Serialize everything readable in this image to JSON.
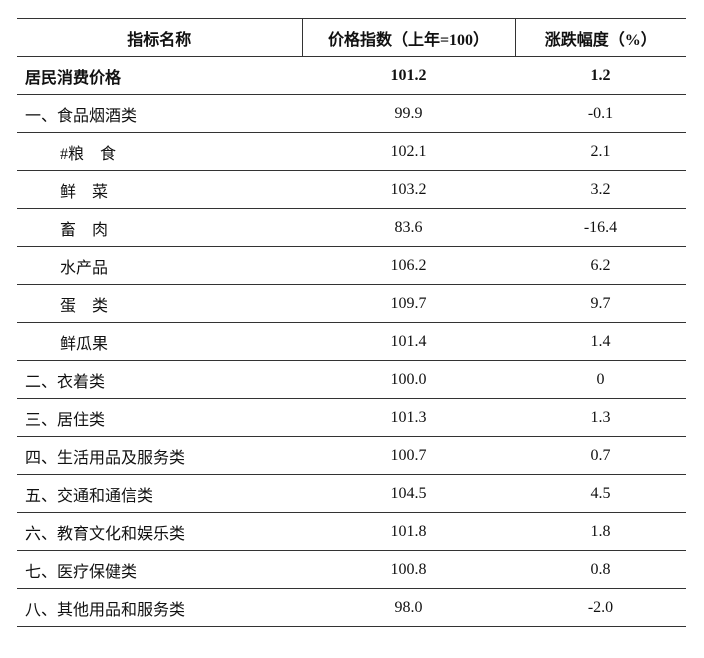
{
  "table": {
    "header": [
      "指标名称",
      "价格指数（上年=100）",
      "涨跌幅度（%）"
    ],
    "rows": [
      [
        "居民消费价格",
        "101.2",
        "1.2"
      ],
      [
        "一、食品烟酒类",
        "99.9",
        "-0.1"
      ],
      [
        "#粮　食",
        "102.1",
        "2.1"
      ],
      [
        "鲜　菜",
        "103.2",
        "3.2"
      ],
      [
        "畜　肉",
        "83.6",
        "-16.4"
      ],
      [
        "水产品",
        "106.2",
        "6.2"
      ],
      [
        "蛋　类",
        "109.7",
        "9.7"
      ],
      [
        "鲜瓜果",
        "101.4",
        "1.4"
      ],
      [
        "二、衣着类",
        "100.0",
        "0"
      ],
      [
        "三、居住类",
        "101.3",
        "1.3"
      ],
      [
        "四、生活用品及服务类",
        "100.7",
        "0.7"
      ],
      [
        "五、交通和通信类",
        "104.5",
        "4.5"
      ],
      [
        "六、教育文化和娱乐类",
        "101.8",
        "1.8"
      ],
      [
        "七、医疗保健类",
        "100.8",
        "0.8"
      ],
      [
        "八、其他用品和服务类",
        "98.0",
        "-2.0"
      ]
    ]
  }
}
